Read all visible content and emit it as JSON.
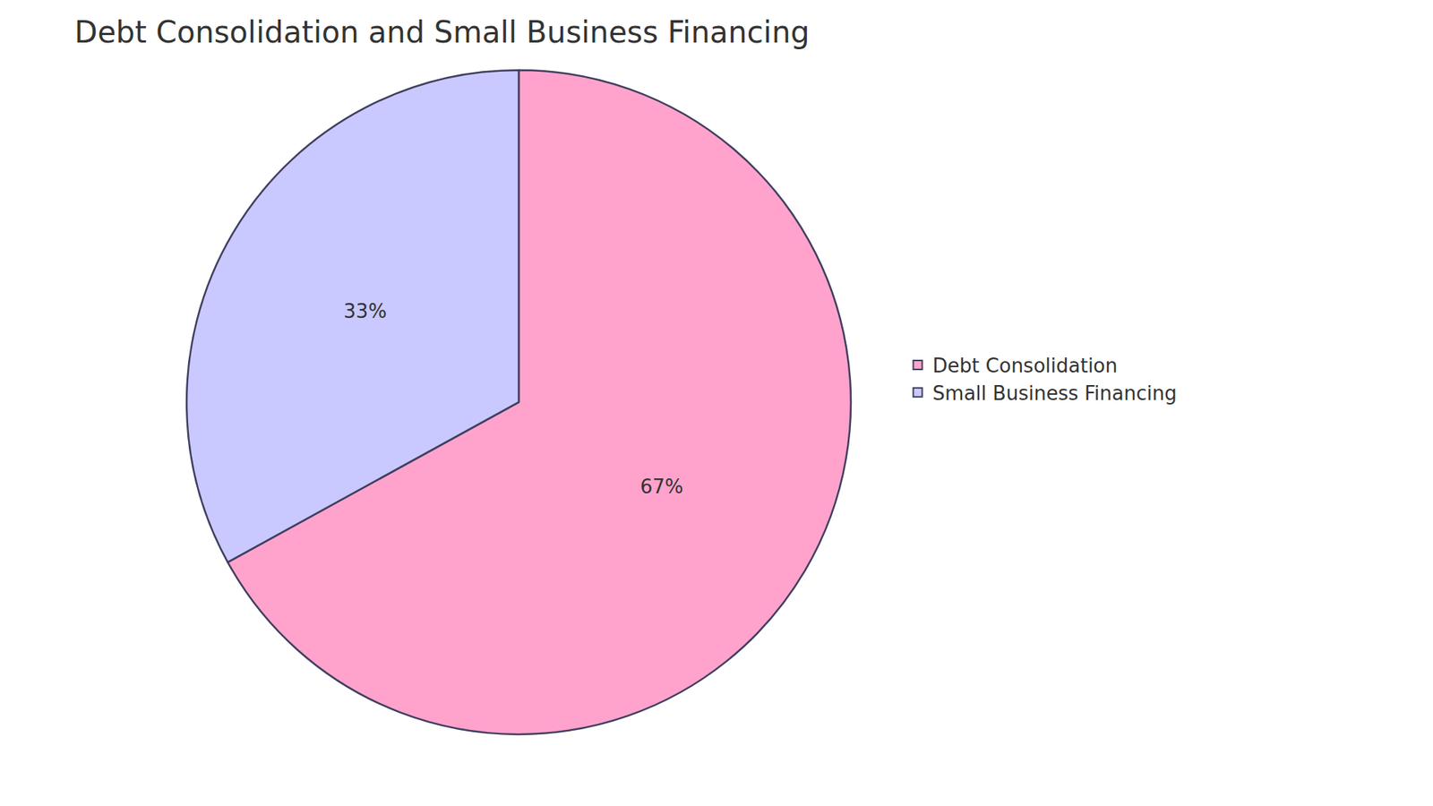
{
  "chart_data": {
    "type": "pie",
    "title": "Debt Consolidation and Small Business Financing",
    "categories": [
      "Debt Consolidation",
      "Small Business Financing"
    ],
    "values": [
      67,
      33
    ],
    "value_labels": [
      "67%",
      "33%"
    ],
    "colors": [
      "#ffa3cd",
      "#c9c9ff"
    ],
    "data_labels": true,
    "legend": "right"
  }
}
